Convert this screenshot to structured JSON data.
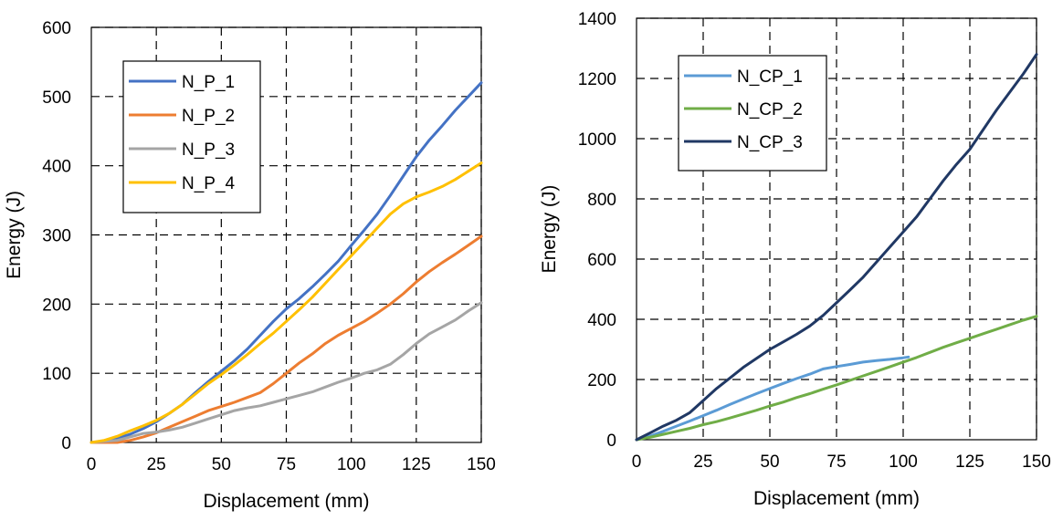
{
  "chart_data": [
    {
      "type": "line",
      "xlabel": "Displacement (mm)",
      "ylabel": "Energy (J)",
      "xlim": [
        0,
        150
      ],
      "ylim": [
        0,
        600
      ],
      "xticks": [
        0,
        25,
        50,
        75,
        100,
        125,
        150
      ],
      "yticks": [
        0,
        100,
        200,
        300,
        400,
        500,
        600
      ],
      "grid": "dashed",
      "legend_position": "top-left",
      "series": [
        {
          "name": "N_P_1",
          "color": "#4472C4",
          "x": [
            0,
            5,
            10,
            15,
            20,
            25,
            30,
            35,
            40,
            45,
            50,
            55,
            60,
            65,
            70,
            75,
            80,
            85,
            90,
            95,
            100,
            105,
            110,
            115,
            120,
            125,
            130,
            135,
            140,
            145,
            150
          ],
          "y": [
            0,
            2,
            6,
            12,
            20,
            30,
            42,
            55,
            72,
            88,
            103,
            118,
            135,
            155,
            175,
            193,
            208,
            225,
            243,
            262,
            285,
            307,
            330,
            357,
            385,
            413,
            437,
            458,
            480,
            500,
            520
          ]
        },
        {
          "name": "N_P_2",
          "color": "#ED7D31",
          "x": [
            0,
            10,
            15,
            20,
            25,
            30,
            35,
            40,
            45,
            50,
            55,
            60,
            65,
            70,
            75,
            80,
            85,
            90,
            95,
            100,
            105,
            110,
            115,
            120,
            125,
            130,
            135,
            140,
            145,
            150
          ],
          "y": [
            0,
            0,
            3,
            8,
            14,
            22,
            30,
            38,
            46,
            52,
            58,
            65,
            72,
            85,
            100,
            115,
            128,
            143,
            155,
            165,
            175,
            187,
            200,
            215,
            232,
            247,
            260,
            272,
            285,
            298
          ]
        },
        {
          "name": "N_P_3",
          "color": "#A5A5A5",
          "x": [
            0,
            10,
            15,
            20,
            25,
            30,
            35,
            40,
            45,
            50,
            55,
            60,
            65,
            70,
            75,
            80,
            85,
            90,
            95,
            100,
            105,
            110,
            115,
            120,
            125,
            130,
            135,
            140,
            145,
            150
          ],
          "y": [
            0,
            3,
            8,
            13,
            15,
            18,
            22,
            28,
            34,
            40,
            46,
            50,
            53,
            58,
            63,
            68,
            73,
            80,
            87,
            93,
            100,
            105,
            113,
            127,
            143,
            157,
            167,
            177,
            190,
            202
          ]
        },
        {
          "name": "N_P_4",
          "color": "#FFC000",
          "x": [
            0,
            5,
            10,
            15,
            20,
            25,
            30,
            35,
            40,
            45,
            50,
            55,
            60,
            65,
            70,
            75,
            80,
            85,
            90,
            95,
            100,
            105,
            110,
            115,
            120,
            125,
            130,
            135,
            140,
            145,
            150
          ],
          "y": [
            0,
            3,
            9,
            17,
            24,
            32,
            42,
            55,
            70,
            85,
            98,
            112,
            127,
            143,
            158,
            175,
            192,
            210,
            230,
            250,
            270,
            290,
            310,
            330,
            345,
            355,
            362,
            370,
            380,
            392,
            404
          ]
        }
      ]
    },
    {
      "type": "line",
      "xlabel": "Displacement (mm)",
      "ylabel": "Energy (J)",
      "xlim": [
        0,
        150
      ],
      "ylim": [
        0,
        1400
      ],
      "xticks": [
        0,
        25,
        50,
        75,
        100,
        125,
        150
      ],
      "yticks": [
        0,
        200,
        400,
        600,
        800,
        1000,
        1200,
        1400
      ],
      "grid": "dashed",
      "legend_position": "top-left",
      "series": [
        {
          "name": "N_CP_1",
          "color": "#5B9BD5",
          "x": [
            0,
            5,
            10,
            15,
            20,
            25,
            30,
            35,
            40,
            45,
            50,
            55,
            60,
            65,
            70,
            75,
            80,
            85,
            90,
            95,
            100,
            102
          ],
          "y": [
            0,
            12,
            28,
            45,
            62,
            80,
            98,
            117,
            135,
            153,
            170,
            187,
            203,
            218,
            235,
            243,
            250,
            258,
            263,
            267,
            272,
            275
          ]
        },
        {
          "name": "N_CP_2",
          "color": "#70AD47",
          "x": [
            0,
            5,
            10,
            15,
            20,
            25,
            30,
            35,
            40,
            45,
            50,
            55,
            60,
            65,
            70,
            75,
            80,
            85,
            90,
            95,
            100,
            105,
            110,
            115,
            120,
            125,
            130,
            135,
            140,
            145,
            150
          ],
          "y": [
            0,
            8,
            18,
            28,
            38,
            50,
            60,
            72,
            85,
            98,
            112,
            125,
            140,
            153,
            168,
            182,
            197,
            212,
            227,
            242,
            258,
            273,
            290,
            307,
            322,
            337,
            352,
            367,
            382,
            397,
            410
          ]
        },
        {
          "name": "N_CP_3",
          "color": "#203864",
          "x": [
            0,
            5,
            10,
            15,
            20,
            25,
            30,
            35,
            40,
            45,
            50,
            55,
            60,
            65,
            70,
            75,
            80,
            85,
            90,
            95,
            100,
            105,
            110,
            115,
            120,
            125,
            130,
            135,
            140,
            145,
            150
          ],
          "y": [
            0,
            22,
            45,
            65,
            90,
            130,
            170,
            205,
            240,
            270,
            300,
            325,
            350,
            378,
            413,
            455,
            497,
            540,
            590,
            640,
            690,
            740,
            800,
            860,
            915,
            965,
            1030,
            1095,
            1155,
            1215,
            1280
          ]
        }
      ]
    }
  ]
}
